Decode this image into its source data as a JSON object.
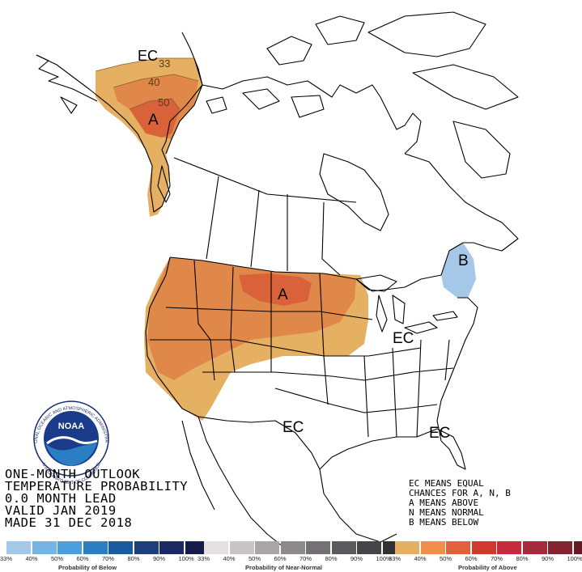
{
  "title_lines": [
    "ONE-MONTH OUTLOOK",
    "TEMPERATURE PROBABILITY",
    "0.0 MONTH LEAD",
    "VALID JAN 2019",
    "MADE 31 DEC 2018"
  ],
  "key_lines": [
    "EC MEANS EQUAL",
    "CHANCES FOR A, N, B",
    "A MEANS ABOVE",
    "N MEANS NORMAL",
    "B MEANS BELOW"
  ],
  "map_labels": {
    "alaska_ec": "EC",
    "alaska_contour_33": "33",
    "alaska_contour_40": "40",
    "alaska_contour_50": "50",
    "alaska_above": "A",
    "plains_above": "A",
    "northeast_below": "B",
    "east_ec": "EC",
    "south_ec": "EC",
    "southeast_ec": "EC"
  },
  "logo": {
    "name": "NOAA",
    "ring_text": "NATIONAL OCEANIC AND ATMOSPHERIC ADMINISTRATION",
    "ring_bottom": "U.S. DEPARTMENT OF COMMERCE"
  },
  "scales": {
    "below": {
      "title": "Probability of Below",
      "ticks": [
        "33%",
        "40%",
        "50%",
        "60%",
        "70%",
        "80%",
        "90%",
        "100%"
      ],
      "colors": [
        "#a6c8e8",
        "#75b4e3",
        "#4a9fdc",
        "#2a7fc4",
        "#1a5a9e",
        "#1f3f7a",
        "#1b2a63",
        "#141c4c"
      ]
    },
    "normal": {
      "title": "Probability of Near-Normal",
      "ticks": [
        "33%",
        "40%",
        "50%",
        "60%",
        "70%",
        "80%",
        "90%",
        "100%"
      ],
      "colors": [
        "#e4dfe0",
        "#c9c4c5",
        "#aaa6a7",
        "#8c8a8b",
        "#737173",
        "#5b5a5c",
        "#464547",
        "#313033"
      ]
    },
    "above": {
      "title": "Probability of Above",
      "ticks": [
        "33%",
        "40%",
        "50%",
        "60%",
        "70%",
        "80%",
        "90%",
        "100%"
      ],
      "colors": [
        "#e6b062",
        "#f08f4a",
        "#e0613a",
        "#d03a2e",
        "#c62a3c",
        "#a62b3a",
        "#852331",
        "#651b24"
      ]
    }
  },
  "colors": {
    "above_33": "#e6b062",
    "above_40": "#e0884a",
    "above_50": "#d9623a",
    "below_33": "#a6c8e8"
  }
}
